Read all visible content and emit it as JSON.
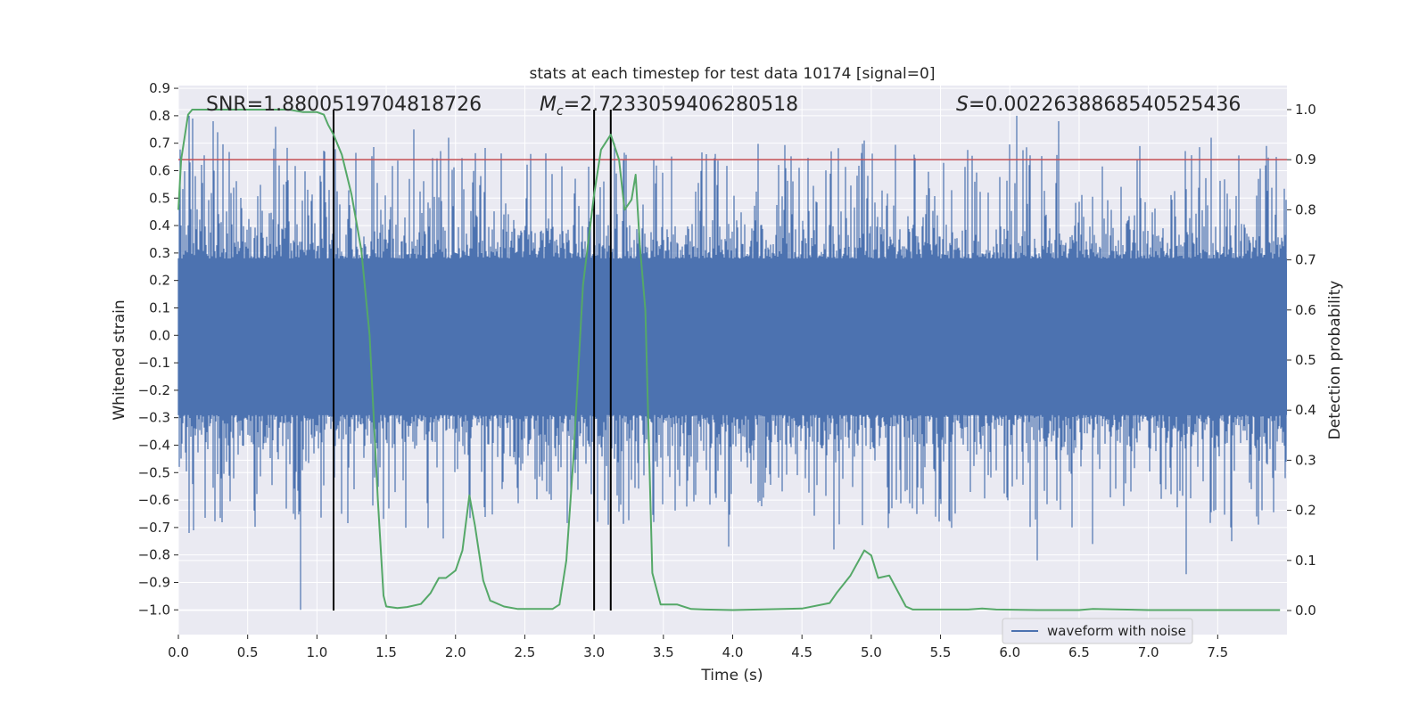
{
  "chart_data": {
    "type": "line",
    "title": "stats at each timestep for test data 10174 [signal=0]",
    "xlabel": "Time (s)",
    "ylabel_left": "Whitened strain",
    "ylabel_right": "Detection probability",
    "xlim": [
      0.0,
      8.0
    ],
    "ylim_left": [
      -1.09,
      0.91
    ],
    "ylim_right": [
      -0.048,
      1.048
    ],
    "xticks": [
      "0.0",
      "0.5",
      "1.0",
      "1.5",
      "2.0",
      "2.5",
      "3.0",
      "3.5",
      "4.0",
      "4.5",
      "5.0",
      "5.5",
      "6.0",
      "6.5",
      "7.0",
      "7.5"
    ],
    "yticks_left": [
      "0.9",
      "0.8",
      "0.7",
      "0.6",
      "0.5",
      "0.4",
      "0.3",
      "0.2",
      "0.1",
      "0.0",
      "−0.1",
      "−0.2",
      "−0.3",
      "−0.4",
      "−0.5",
      "−0.6",
      "−0.7",
      "−0.8",
      "−0.9",
      "−1.0"
    ],
    "yticks_right": [
      "1.0",
      "0.9",
      "0.8",
      "0.7",
      "0.6",
      "0.5",
      "0.4",
      "0.3",
      "0.2",
      "0.1",
      "0.0"
    ],
    "annotations": {
      "snr": "SNR=1.8800519704818726",
      "mc_symbol": "M",
      "mc_sub": "c",
      "mc_value": "=2.7233059406280518",
      "s_symbol": "S",
      "s_value": "=0.0022638868540525436"
    },
    "threshold": {
      "axis": "right",
      "value": 0.9,
      "color": "#c44e52"
    },
    "vertical_markers_x": [
      1.12,
      3.0,
      3.12
    ],
    "series": [
      {
        "name": "waveform with noise",
        "axis": "left",
        "color": "#4c72b0",
        "band": {
          "lower_dense": -0.29,
          "upper_dense": 0.28
        },
        "peak_spikes": [
          {
            "t": 0.08,
            "v": 0.8
          },
          {
            "t": 0.1,
            "v": 0.79
          },
          {
            "t": 0.25,
            "v": 0.78
          },
          {
            "t": 0.28,
            "v": 0.74
          },
          {
            "t": 0.7,
            "v": 0.76
          },
          {
            "t": 1.7,
            "v": 0.75
          },
          {
            "t": 1.95,
            "v": 0.72
          },
          {
            "t": 3.15,
            "v": 0.7
          },
          {
            "t": 4.95,
            "v": 0.71
          },
          {
            "t": 6.05,
            "v": 0.8
          },
          {
            "t": 6.35,
            "v": 0.78
          },
          {
            "t": 7.45,
            "v": 0.72
          },
          {
            "t": 7.85,
            "v": 0.69
          }
        ],
        "trough_spikes": [
          {
            "t": 0.08,
            "v": -0.72
          },
          {
            "t": 0.11,
            "v": -0.71
          },
          {
            "t": 0.83,
            "v": -0.65
          },
          {
            "t": 0.88,
            "v": -1.0
          },
          {
            "t": 1.18,
            "v": -0.65
          },
          {
            "t": 1.91,
            "v": -0.74
          },
          {
            "t": 3.1,
            "v": -0.69
          },
          {
            "t": 3.43,
            "v": -0.68
          },
          {
            "t": 3.97,
            "v": -0.77
          },
          {
            "t": 4.73,
            "v": -0.78
          },
          {
            "t": 6.2,
            "v": -0.82
          },
          {
            "t": 6.6,
            "v": -0.76
          },
          {
            "t": 7.27,
            "v": -0.87
          },
          {
            "t": 7.6,
            "v": -0.75
          }
        ]
      },
      {
        "name": "detection probability",
        "axis": "right",
        "color": "#55a868",
        "x": [
          0.0,
          0.02,
          0.07,
          0.1,
          0.2,
          0.4,
          0.6,
          0.8,
          0.9,
          1.0,
          1.05,
          1.08,
          1.12,
          1.18,
          1.25,
          1.32,
          1.38,
          1.44,
          1.48,
          1.5,
          1.58,
          1.65,
          1.75,
          1.82,
          1.88,
          1.93,
          2.0,
          2.05,
          2.1,
          2.14,
          2.2,
          2.25,
          2.35,
          2.45,
          2.55,
          2.7,
          2.75,
          2.8,
          2.85,
          2.92,
          3.0,
          3.05,
          3.12,
          3.18,
          3.22,
          3.27,
          3.3,
          3.33,
          3.37,
          3.42,
          3.48,
          3.6,
          3.7,
          3.8,
          4.0,
          4.5,
          4.7,
          4.75,
          4.85,
          4.95,
          5.0,
          5.05,
          5.13,
          5.25,
          5.3,
          5.5,
          5.7,
          5.8,
          5.9,
          6.2,
          6.5,
          6.6,
          6.8,
          7.0,
          7.5,
          7.95
        ],
        "y": [
          0.8,
          0.9,
          0.99,
          1.0,
          1.0,
          1.0,
          1.0,
          1.0,
          0.995,
          0.995,
          0.99,
          0.97,
          0.95,
          0.91,
          0.83,
          0.72,
          0.55,
          0.22,
          0.03,
          0.008,
          0.005,
          0.007,
          0.013,
          0.035,
          0.065,
          0.065,
          0.08,
          0.12,
          0.23,
          0.17,
          0.06,
          0.02,
          0.008,
          0.003,
          0.003,
          0.003,
          0.012,
          0.1,
          0.3,
          0.65,
          0.83,
          0.92,
          0.95,
          0.9,
          0.8,
          0.82,
          0.87,
          0.73,
          0.6,
          0.075,
          0.012,
          0.012,
          0.003,
          0.002,
          0.001,
          0.004,
          0.015,
          0.035,
          0.07,
          0.12,
          0.11,
          0.065,
          0.07,
          0.008,
          0.002,
          0.002,
          0.002,
          0.004,
          0.002,
          0.001,
          0.001,
          0.003,
          0.002,
          0.001,
          0.001,
          0.001
        ]
      }
    ],
    "legend": {
      "location": "lower-right",
      "entries": [
        "waveform with noise"
      ]
    },
    "grid": true
  }
}
